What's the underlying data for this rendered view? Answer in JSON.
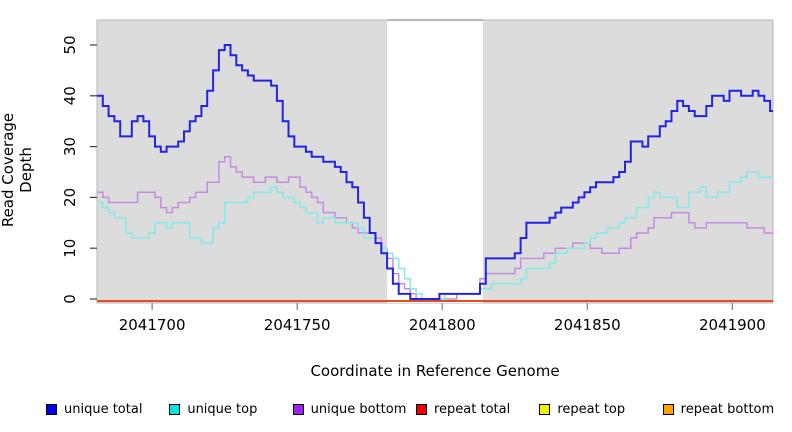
{
  "chart_data": {
    "type": "line",
    "title": "",
    "xlabel": "Coordinate in Reference Genome",
    "ylabel": "Read Coverage Depth",
    "xlim": [
      2041681,
      2041914
    ],
    "ylim": [
      0,
      55
    ],
    "x_ticks": [
      2041700,
      2041750,
      2041800,
      2041850,
      2041900
    ],
    "y_ticks": [
      0,
      10,
      20,
      30,
      40,
      50
    ],
    "grid": false,
    "legend_position": "bottom",
    "plot_bg_color": "#dcdcdc",
    "gap_band": {
      "x_start": 2041781,
      "x_end": 2041814,
      "color": "#ffffff"
    },
    "x_start": 2041681,
    "x_step": 2,
    "series": [
      {
        "name": "unique total",
        "color": "#2323e2",
        "legend_color": "#0000ee",
        "width": 2,
        "values": [
          40,
          38,
          36,
          35,
          32,
          32,
          35,
          36,
          35,
          32,
          30,
          29,
          30,
          30,
          31,
          33,
          35,
          36,
          38,
          41,
          45,
          49,
          50,
          48,
          46,
          45,
          44,
          43,
          43,
          43,
          42,
          39,
          35,
          32,
          30,
          30,
          29,
          28,
          28,
          27,
          27,
          26,
          25,
          23,
          22,
          19,
          16,
          13,
          11,
          9,
          6,
          3,
          1,
          1,
          0,
          0,
          0,
          0,
          0,
          1,
          1,
          1,
          1,
          1,
          1,
          1,
          3,
          8,
          8,
          8,
          8,
          8,
          9,
          12,
          15,
          15,
          15,
          15,
          16,
          17,
          18,
          18,
          19,
          20,
          21,
          22,
          23,
          23,
          23,
          24,
          25,
          27,
          31,
          31,
          30,
          32,
          32,
          34,
          35,
          37,
          39,
          38,
          37,
          36,
          36,
          38,
          40,
          40,
          39,
          41,
          41,
          40,
          40,
          41,
          40,
          39,
          37
        ]
      },
      {
        "name": "unique top",
        "color": "#84e9e9",
        "legend_color": "#00e6e6",
        "width": 1.5,
        "values": [
          19,
          18,
          17,
          16,
          16,
          13,
          12,
          12,
          12,
          13,
          15,
          15,
          14,
          15,
          15,
          15,
          12,
          12,
          11,
          11,
          14,
          15,
          19,
          19,
          19,
          19,
          20,
          21,
          21,
          21,
          22,
          21,
          20,
          20,
          19,
          18,
          17,
          17,
          15,
          16,
          16,
          15,
          15,
          15,
          15,
          14,
          12,
          12,
          11,
          10,
          9,
          8,
          6,
          4,
          2,
          1,
          0,
          0,
          0,
          0,
          1,
          1,
          1,
          1,
          1,
          1,
          2,
          2,
          3,
          3,
          3,
          3,
          3,
          4,
          6,
          6,
          6,
          6,
          7,
          9,
          9,
          10,
          10,
          10,
          11,
          12,
          13,
          13,
          14,
          14,
          15,
          16,
          16,
          18,
          18,
          20,
          21,
          20,
          20,
          20,
          18,
          18,
          21,
          21,
          22,
          20,
          20,
          21,
          21,
          23,
          23,
          24,
          25,
          25,
          24,
          24,
          24
        ]
      },
      {
        "name": "unique bottom",
        "color": "#c28ce0",
        "legend_color": "#a020f0",
        "width": 1.5,
        "values": [
          21,
          20,
          19,
          19,
          19,
          19,
          19,
          21,
          21,
          21,
          20,
          18,
          17,
          18,
          19,
          19,
          20,
          21,
          21,
          23,
          23,
          27,
          28,
          26,
          25,
          24,
          24,
          23,
          23,
          24,
          24,
          23,
          23,
          24,
          24,
          22,
          21,
          20,
          19,
          17,
          17,
          16,
          16,
          15,
          14,
          13,
          13,
          13,
          12,
          10,
          8,
          5,
          3,
          2,
          1,
          0,
          0,
          0,
          0,
          0,
          0,
          0,
          1,
          1,
          1,
          1,
          4,
          5,
          5,
          5,
          5,
          5,
          6,
          8,
          8,
          8,
          8,
          9,
          9,
          10,
          10,
          10,
          11,
          11,
          11,
          10,
          10,
          9,
          9,
          9,
          10,
          10,
          12,
          13,
          13,
          14,
          16,
          16,
          16,
          17,
          17,
          17,
          15,
          14,
          14,
          15,
          15,
          15,
          15,
          15,
          15,
          15,
          14,
          14,
          14,
          13,
          13
        ]
      },
      {
        "name": "repeat total",
        "color": "#e32222",
        "legend_color": "#ee0000",
        "width": 1.5,
        "constant": 0
      },
      {
        "name": "repeat top",
        "color": "#f0f032",
        "legend_color": "#f0f000",
        "width": 1.5,
        "constant": 0
      },
      {
        "name": "repeat bottom",
        "color": "#ff9d0c",
        "legend_color": "#ffa200",
        "width": 2,
        "constant": 0
      }
    ]
  }
}
